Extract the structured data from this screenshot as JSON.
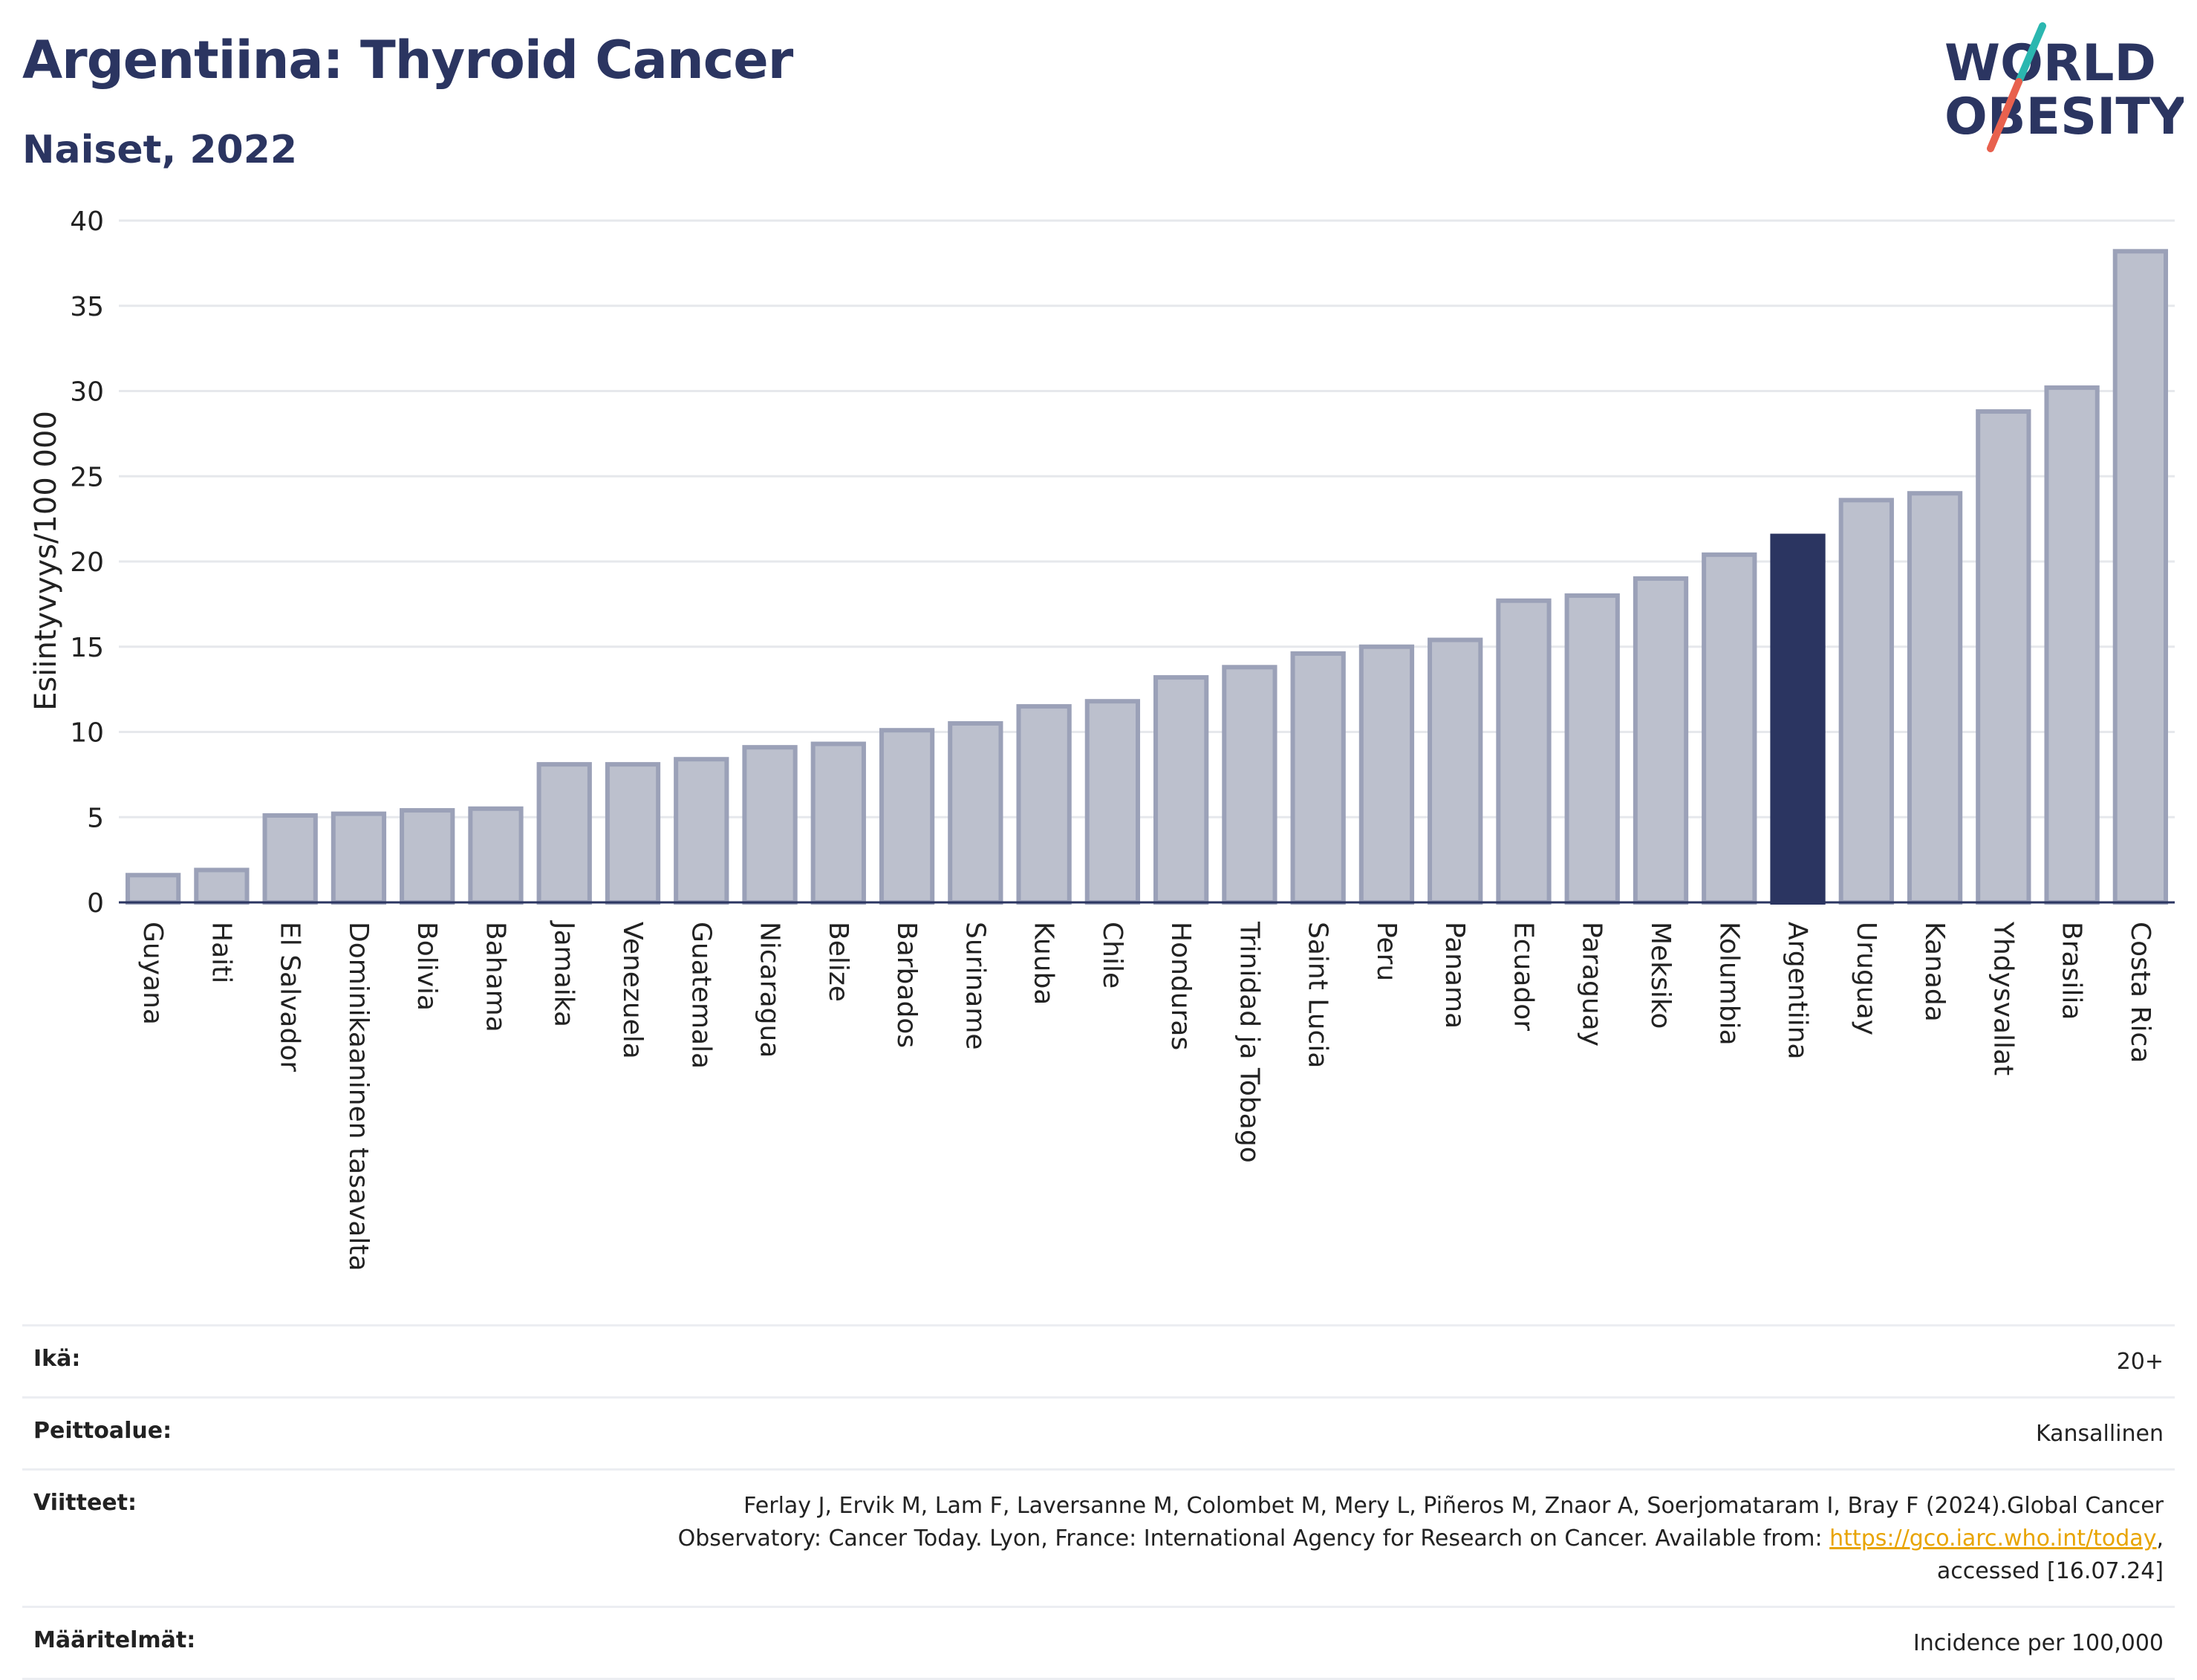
{
  "header": {
    "title": "Argentiina: Thyroid Cancer",
    "subtitle": "Naiset, 2022"
  },
  "logo": {
    "line1": "WORLD",
    "line2": "OBESITY",
    "colors": {
      "text": "#2b3561",
      "slash_teal": "#2bb7b0",
      "slash_red": "#e8614e"
    }
  },
  "chart_data": {
    "type": "bar",
    "title": "Argentiina: Thyroid Cancer",
    "subtitle": "Naiset, 2022",
    "ylabel": "Esiintyvyys/100 000",
    "xlabel": "",
    "ylim": [
      0,
      40
    ],
    "yticks": [
      0,
      5,
      10,
      15,
      20,
      25,
      30,
      35,
      40
    ],
    "grid": true,
    "highlight": "Argentiina",
    "colors": {
      "bar": "#bcc0cd",
      "bar_edge": "#9ba1b8",
      "highlight": "#2b3561",
      "grid": "#e6e8ec"
    },
    "categories": [
      "Guyana",
      "Haiti",
      "El Salvador",
      "Dominikaaninen tasavalta",
      "Bolivia",
      "Bahama",
      "Jamaika",
      "Venezuela",
      "Guatemala",
      "Nicaragua",
      "Belize",
      "Barbados",
      "Suriname",
      "Kuuba",
      "Chile",
      "Honduras",
      "Trinidad ja Tobago",
      "Saint Lucia",
      "Peru",
      "Panama",
      "Ecuador",
      "Paraguay",
      "Meksiko",
      "Kolumbia",
      "Argentiina",
      "Uruguay",
      "Kanada",
      "Yhdysvallat",
      "Brasilia",
      "Costa Rica"
    ],
    "values": [
      1.6,
      1.9,
      5.1,
      5.2,
      5.4,
      5.5,
      8.1,
      8.1,
      8.4,
      9.1,
      9.3,
      10.1,
      10.5,
      11.5,
      11.8,
      13.2,
      13.8,
      14.6,
      15.0,
      15.4,
      17.7,
      18.0,
      19.0,
      20.4,
      21.5,
      23.6,
      24.0,
      28.8,
      30.2,
      38.2
    ]
  },
  "meta": {
    "age_label": "Ikä:",
    "age_value": "20+",
    "coverage_label": "Peittoalue:",
    "coverage_value": "Kansallinen",
    "refs_label": "Viitteet:",
    "refs_line1": "Ferlay J, Ervik M, Lam F, Laversanne M, Colombet M, Mery L, Piñeros M, Znaor A, Soerjomataram I, Bray F (2024).Global Cancer",
    "refs_line2_pre": "Observatory: Cancer Today. Lyon, France: International Agency for Research on Cancer. Available from: ",
    "refs_link": "https://gco.iarc.who.int/today",
    "refs_line2_post": ",",
    "refs_line3": "accessed [16.07.24]",
    "defs_label": "Määritelmät:",
    "defs_value": "Incidence per 100,000"
  }
}
